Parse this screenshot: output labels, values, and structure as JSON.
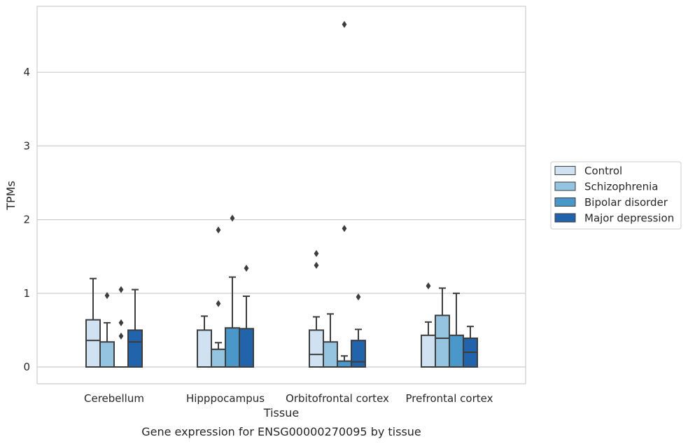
{
  "chart_data": {
    "type": "box",
    "title": "",
    "caption": "Gene expression for ENSG00000270095 by tissue",
    "xlabel": "Tissue",
    "ylabel": "TPMs",
    "ylim": [
      -0.22,
      4.9
    ],
    "yticks": [
      0,
      1,
      2,
      3,
      4
    ],
    "grid": "horizontal",
    "legend_position": "right",
    "categories": [
      "Cerebellum",
      "Hipppocampus",
      "Orbitofrontal cortex",
      "Prefrontal cortex"
    ],
    "series": [
      {
        "name": "Control",
        "color": "#d0e1f2",
        "boxes": [
          {
            "q1": 0,
            "median": 0.36,
            "q3": 0.64,
            "whisker_low": 0,
            "whisker_high": 1.2,
            "outliers": []
          },
          {
            "q1": 0,
            "median": 0,
            "q3": 0.5,
            "whisker_low": 0,
            "whisker_high": 0.69,
            "outliers": []
          },
          {
            "q1": 0,
            "median": 0.17,
            "q3": 0.5,
            "whisker_low": 0,
            "whisker_high": 0.68,
            "outliers": [
              1.38,
              1.54
            ]
          },
          {
            "q1": 0,
            "median": 0,
            "q3": 0.43,
            "whisker_low": 0,
            "whisker_high": 0.61,
            "outliers": [
              1.1
            ]
          }
        ]
      },
      {
        "name": "Schizophrenia",
        "color": "#94c4df",
        "boxes": [
          {
            "q1": 0,
            "median": 0,
            "q3": 0.34,
            "whisker_low": 0,
            "whisker_high": 0.6,
            "outliers": [
              0.97
            ]
          },
          {
            "q1": 0,
            "median": 0,
            "q3": 0.24,
            "whisker_low": 0,
            "whisker_high": 0.33,
            "outliers": [
              0.86,
              1.86
            ]
          },
          {
            "q1": 0,
            "median": 0,
            "q3": 0.34,
            "whisker_low": 0,
            "whisker_high": 0.72,
            "outliers": []
          },
          {
            "q1": 0,
            "median": 0.39,
            "q3": 0.7,
            "whisker_low": 0,
            "whisker_high": 1.07,
            "outliers": []
          }
        ]
      },
      {
        "name": "Bipolar disorder",
        "color": "#4a98c9",
        "boxes": [
          {
            "q1": 0,
            "median": 0,
            "q3": 0,
            "whisker_low": 0,
            "whisker_high": 0,
            "outliers": [
              0.42,
              0.6,
              1.05
            ]
          },
          {
            "q1": 0,
            "median": 0,
            "q3": 0.53,
            "whisker_low": 0,
            "whisker_high": 1.22,
            "outliers": [
              2.02
            ]
          },
          {
            "q1": 0,
            "median": 0,
            "q3": 0.08,
            "whisker_low": 0,
            "whisker_high": 0.15,
            "outliers": [
              1.88,
              4.65
            ]
          },
          {
            "q1": 0,
            "median": 0,
            "q3": 0.43,
            "whisker_low": 0,
            "whisker_high": 1.0,
            "outliers": []
          }
        ]
      },
      {
        "name": "Major depression",
        "color": "#2164ab",
        "boxes": [
          {
            "q1": 0,
            "median": 0.34,
            "q3": 0.5,
            "whisker_low": 0,
            "whisker_high": 1.05,
            "outliers": []
          },
          {
            "q1": 0,
            "median": 0,
            "q3": 0.52,
            "whisker_low": 0,
            "whisker_high": 0.96,
            "outliers": [
              1.34
            ]
          },
          {
            "q1": 0,
            "median": 0.07,
            "q3": 0.36,
            "whisker_low": 0,
            "whisker_high": 0.51,
            "outliers": [
              0.95
            ]
          },
          {
            "q1": 0,
            "median": 0.2,
            "q3": 0.39,
            "whisker_low": 0,
            "whisker_high": 0.55,
            "outliers": []
          }
        ]
      }
    ]
  }
}
